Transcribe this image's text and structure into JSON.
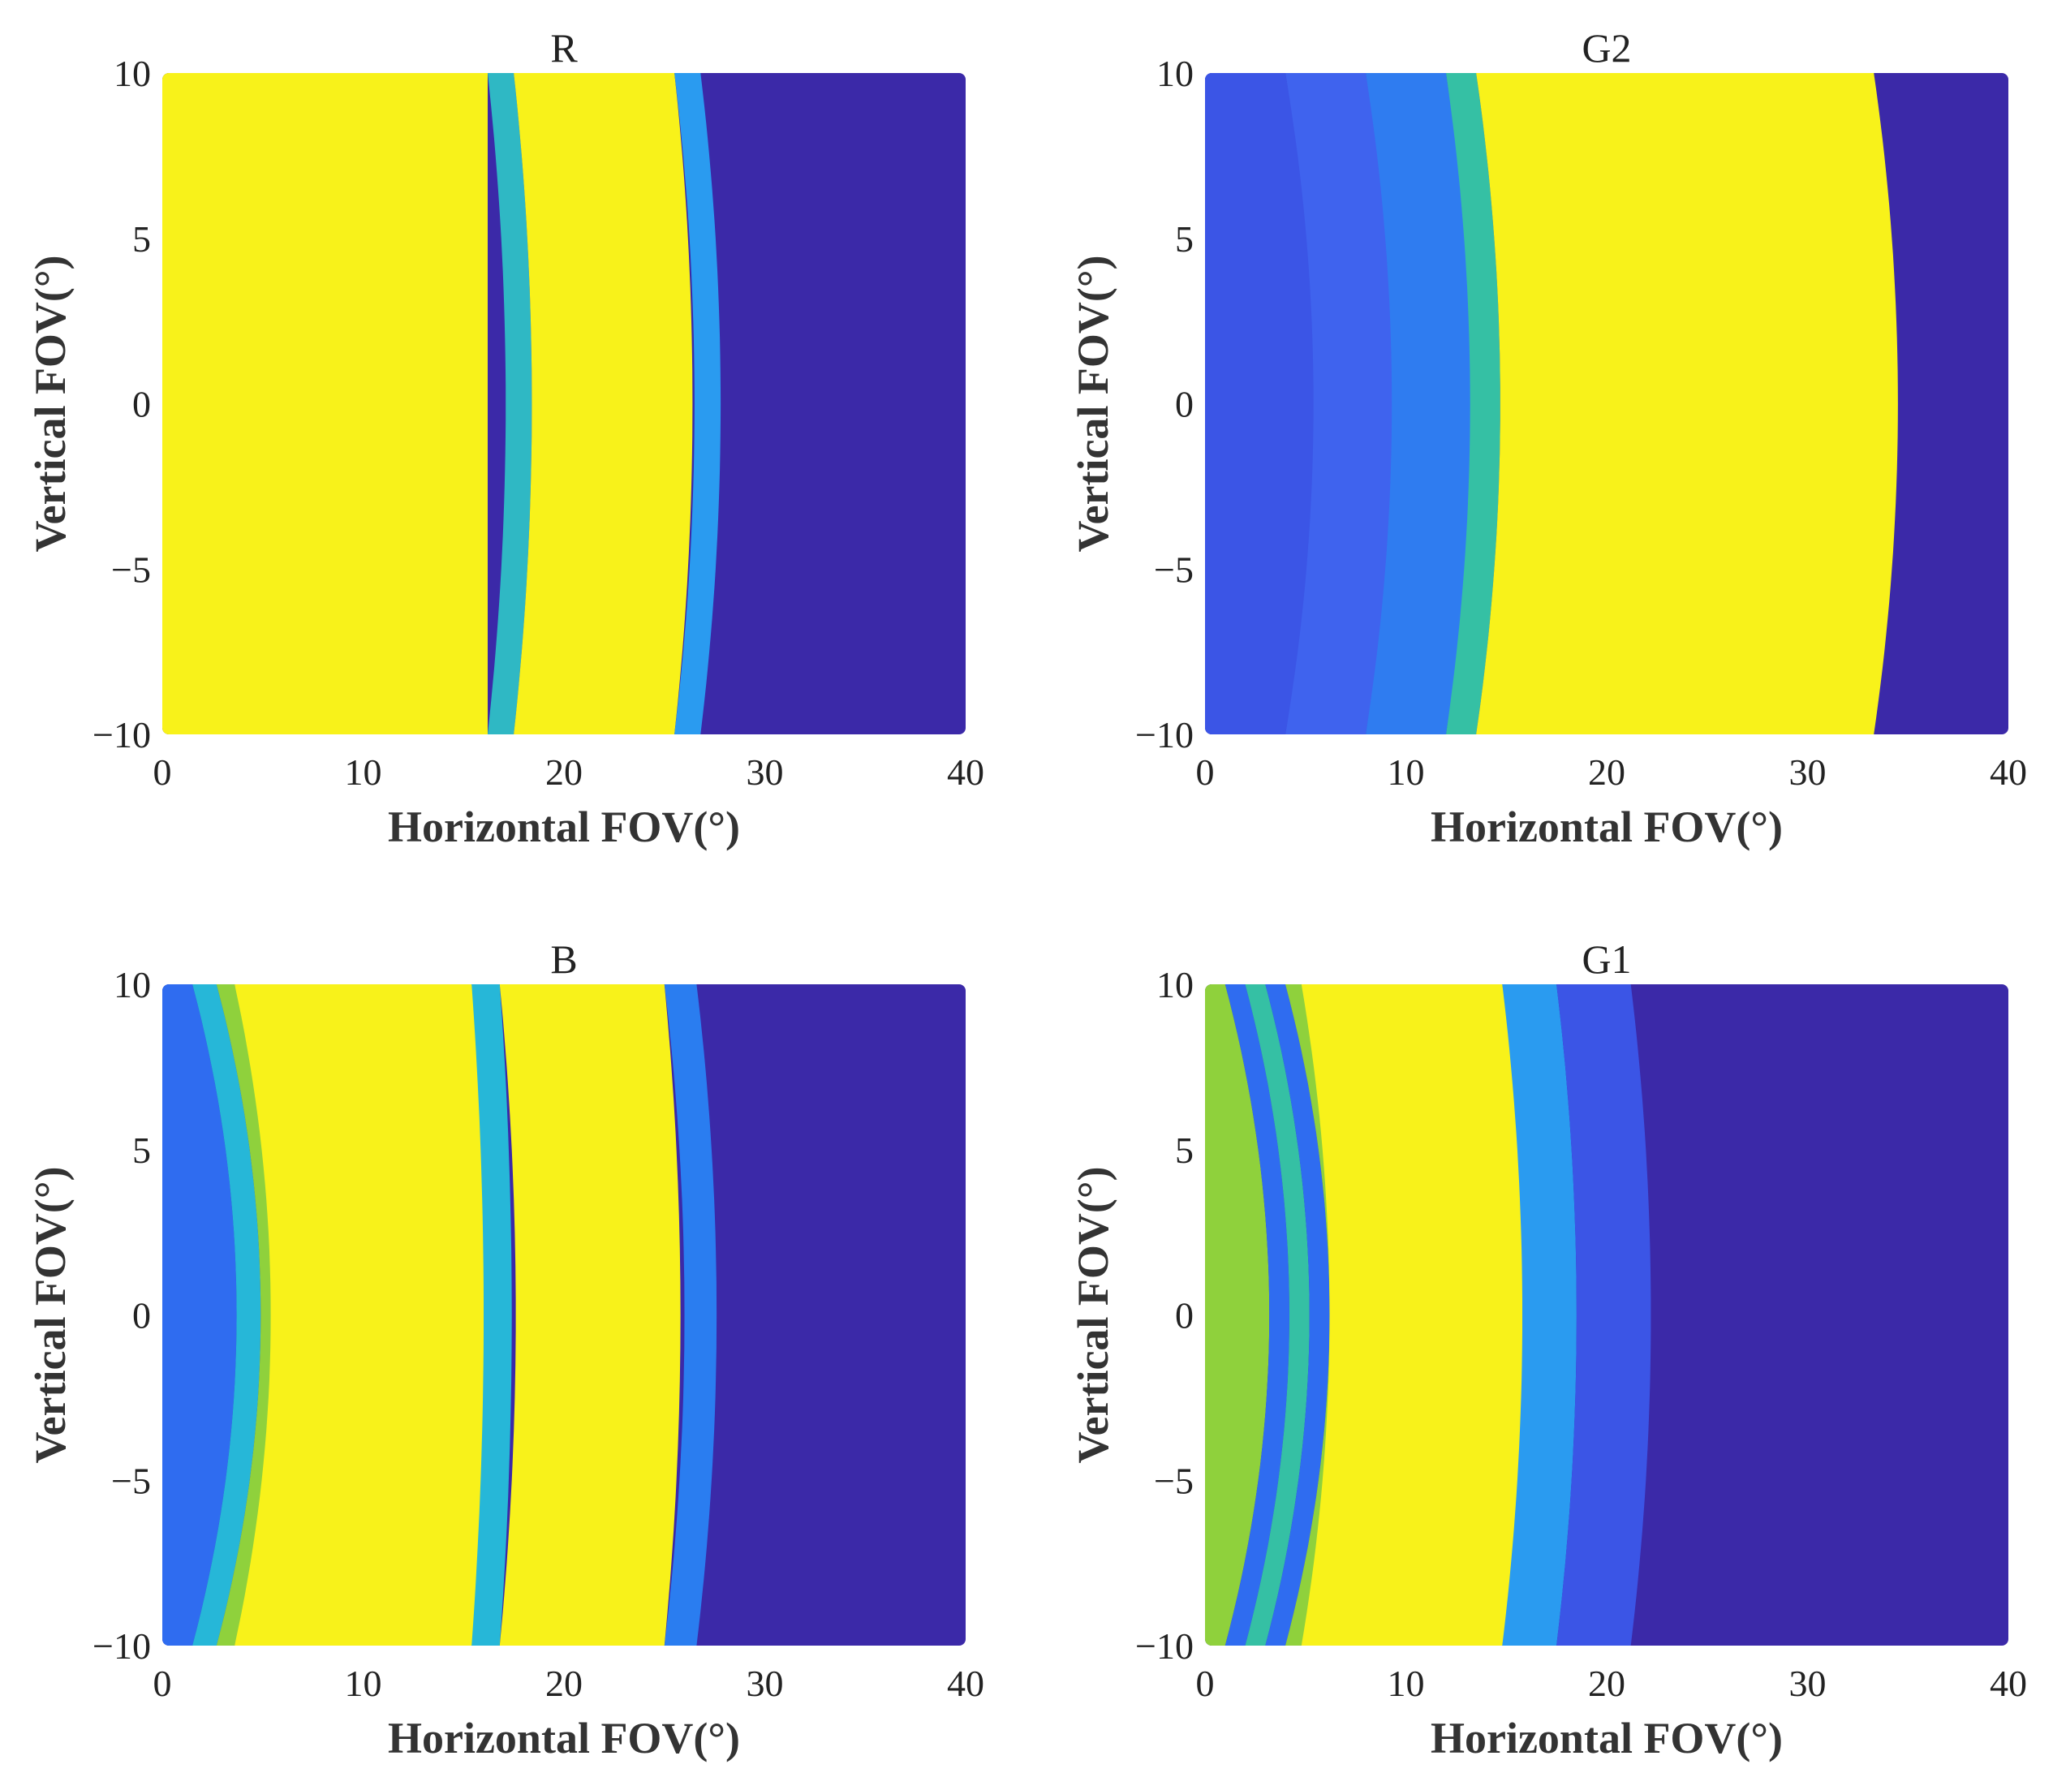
{
  "colors": {
    "background": "#3b29a8",
    "yellow": "#f8f21a",
    "orange": "#f5c237",
    "cyan": "#26b7d8",
    "teal": "#35c0a4",
    "green": "#8fd13c",
    "blue": "#2f6cf0",
    "lightblue": "#2a9bf0",
    "midblue": "#3b55e6"
  },
  "chart_data": [
    {
      "type": "heatmap",
      "title": "R",
      "xlabel": "Horizontal FOV(°)",
      "ylabel": "Vertical FOV(°)",
      "xlim": [
        0,
        40
      ],
      "ylim": [
        -10,
        10
      ],
      "xticks": [
        0,
        10,
        20,
        30,
        40
      ],
      "yticks": [
        10,
        5,
        0,
        -5,
        -10
      ],
      "xtick_labels": [
        "0",
        "10",
        "20",
        "30",
        "40"
      ],
      "ytick_labels": [
        "10",
        "5",
        "0",
        "−5",
        "−10"
      ],
      "background_color": "#3b29a8",
      "bands": [
        {
          "x0": 0,
          "x1": 16.2,
          "bulge": 0.0,
          "color": "#f8f21a"
        },
        {
          "x0": 16.2,
          "x1": 17.5,
          "bulge": 0.9,
          "color": "#2fb8c4"
        },
        {
          "x0": 17.5,
          "x1": 25.5,
          "bulge": 0.9,
          "color": "#f8f21a"
        },
        {
          "x0": 25.5,
          "x1": 26.8,
          "bulge": 1.0,
          "color": "#2a9bf0"
        }
      ]
    },
    {
      "type": "heatmap",
      "title": "G2",
      "xlabel": "Horizontal FOV(°)",
      "ylabel": "Vertical FOV(°)",
      "xlim": [
        0,
        40
      ],
      "ylim": [
        -10,
        10
      ],
      "xticks": [
        0,
        10,
        20,
        30,
        40
      ],
      "yticks": [
        10,
        5,
        0,
        -5,
        -10
      ],
      "xtick_labels": [
        "0",
        "10",
        "20",
        "30",
        "40"
      ],
      "ytick_labels": [
        "10",
        "5",
        "0",
        "−5",
        "−10"
      ],
      "background_color": "#3b29a8",
      "bands": [
        {
          "x0": 0,
          "x1": 4,
          "bulge": 1.5,
          "color": "#3b55e6"
        },
        {
          "x0": 4,
          "x1": 8,
          "bulge": 1.4,
          "color": "#3f63ee"
        },
        {
          "x0": 8,
          "x1": 12,
          "bulge": 1.3,
          "color": "#2f7cf0"
        },
        {
          "x0": 12,
          "x1": 13.5,
          "bulge": 1.2,
          "color": "#35c0a4"
        },
        {
          "x0": 13.5,
          "x1": 33.3,
          "bulge": 1.2,
          "color": "#f8f21a"
        }
      ]
    },
    {
      "type": "heatmap",
      "title": "B",
      "xlabel": "Horizontal FOV(°)",
      "ylabel": "Vertical FOV(°)",
      "xlim": [
        0,
        40
      ],
      "ylim": [
        -10,
        10
      ],
      "xticks": [
        0,
        10,
        20,
        30,
        40
      ],
      "yticks": [
        10,
        5,
        0,
        -5,
        -10
      ],
      "xtick_labels": [
        "0",
        "10",
        "20",
        "30",
        "40"
      ],
      "ytick_labels": [
        "10",
        "5",
        "0",
        "−5",
        "−10"
      ],
      "background_color": "#3b29a8",
      "bands": [
        {
          "x0": 0,
          "x1": 1.5,
          "bulge": 2.2,
          "color": "#2f6cf0"
        },
        {
          "x0": 1.5,
          "x1": 2.7,
          "bulge": 2.2,
          "color": "#26b7d8"
        },
        {
          "x0": 2.7,
          "x1": 3.6,
          "bulge": 2.2,
          "color": "#8fd13c"
        },
        {
          "x0": 3.6,
          "x1": 15.4,
          "bulge": 1.8,
          "color": "#f8f21a"
        },
        {
          "x0": 15.4,
          "x1": 16.8,
          "bulge": 0.6,
          "color": "#26b7d8"
        },
        {
          "x0": 16.8,
          "x1": 25.0,
          "bulge": 0.8,
          "color": "#f8f21a"
        },
        {
          "x0": 25.0,
          "x1": 26.6,
          "bulge": 1.0,
          "color": "#2a7df0"
        }
      ]
    },
    {
      "type": "heatmap",
      "title": "G1",
      "xlabel": "Horizontal FOV(°)",
      "ylabel": "Vertical FOV(°)",
      "xlim": [
        0,
        40
      ],
      "ylim": [
        -10,
        10
      ],
      "xticks": [
        0,
        10,
        20,
        30,
        40
      ],
      "yticks": [
        10,
        5,
        0,
        -5,
        -10
      ],
      "xtick_labels": [
        "0",
        "10",
        "20",
        "30",
        "40"
      ],
      "ytick_labels": [
        "10",
        "5",
        "0",
        "−5",
        "−10"
      ],
      "background_color": "#3b29a8",
      "bands": [
        {
          "x0": 0,
          "x1": 1.0,
          "bulge": 2.2,
          "color": "#8fd13c"
        },
        {
          "x0": 1.0,
          "x1": 2.0,
          "bulge": 2.2,
          "color": "#2f6cf0"
        },
        {
          "x0": 2.0,
          "x1": 3.0,
          "bulge": 2.2,
          "color": "#35c0a4"
        },
        {
          "x0": 3.0,
          "x1": 4.0,
          "bulge": 2.2,
          "color": "#2f6cf0"
        },
        {
          "x0": 4.0,
          "x1": 4.8,
          "bulge": 2.2,
          "color": "#8fd13c"
        },
        {
          "x0": 4.8,
          "x1": 14.8,
          "bulge": 1.4,
          "color": "#f8f21a"
        },
        {
          "x0": 14.8,
          "x1": 17.5,
          "bulge": 1.0,
          "color": "#2a9bf0"
        },
        {
          "x0": 17.5,
          "x1": 21.2,
          "bulge": 1.0,
          "color": "#3b55e6"
        }
      ]
    }
  ]
}
